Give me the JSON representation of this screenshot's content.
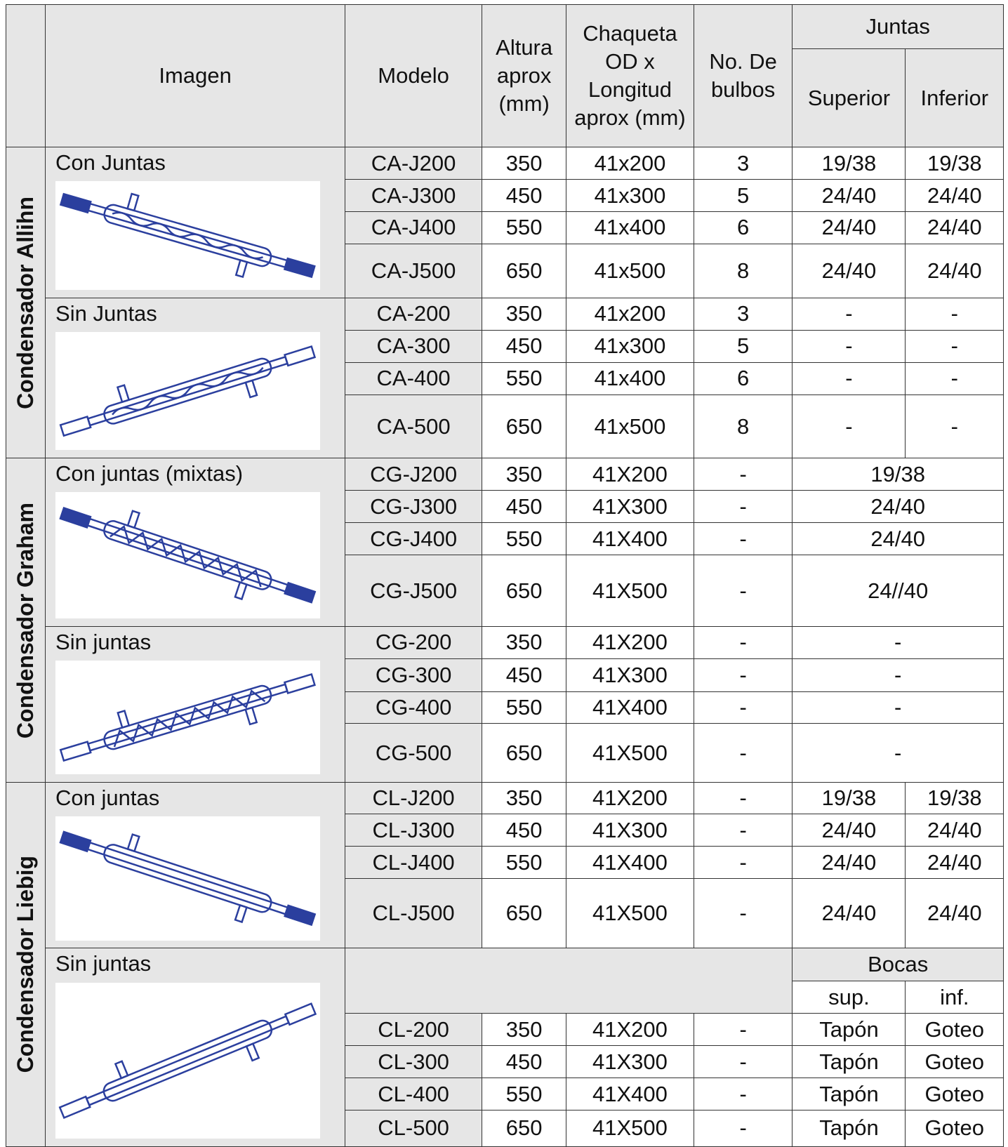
{
  "header": {
    "image": "Imagen",
    "model": "Modelo",
    "height": "Altura aprox (mm)",
    "jacket": "Chaqueta OD x Longitud aprox (mm)",
    "bulbs": "No. De bulbos",
    "joints": "Juntas",
    "upper": "Superior",
    "lower": "Inferior"
  },
  "groups": [
    {
      "name": "Condensador Allihn",
      "subgroups": [
        {
          "label": "Con Juntas",
          "rows": [
            [
              "CA-J200",
              "350",
              "41x200",
              "3",
              "19/38",
              "19/38"
            ],
            [
              "CA-J300",
              "450",
              "41x300",
              "5",
              "24/40",
              "24/40"
            ],
            [
              "CA-J400",
              "550",
              "41x400",
              "6",
              "24/40",
              "24/40"
            ],
            [
              "CA-J500",
              "650",
              "41x500",
              "8",
              "24/40",
              "24/40"
            ]
          ]
        },
        {
          "label": "Sin Juntas",
          "rows": [
            [
              "CA-200",
              "350",
              "41x200",
              "3",
              "-",
              "-"
            ],
            [
              "CA-300",
              "450",
              "41x300",
              "5",
              "-",
              "-"
            ],
            [
              "CA-400",
              "550",
              "41x400",
              "6",
              "-",
              "-"
            ],
            [
              "CA-500",
              "650",
              "41x500",
              "8",
              "-",
              "-"
            ]
          ]
        }
      ]
    },
    {
      "name": "Condensador Graham",
      "subgroups": [
        {
          "label": "Con juntas (mixtas)",
          "rows": [
            [
              "CG-J200",
              "350",
              "41X200",
              "-",
              "19/38"
            ],
            [
              "CG-J300",
              "450",
              "41X300",
              "-",
              "24/40"
            ],
            [
              "CG-J400",
              "550",
              "41X400",
              "-",
              "24/40"
            ],
            [
              "CG-J500",
              "650",
              "41X500",
              "-",
              "24//40"
            ]
          ]
        },
        {
          "label": "Sin juntas",
          "rows": [
            [
              "CG-200",
              "350",
              "41X200",
              "-",
              "-"
            ],
            [
              "CG-300",
              "450",
              "41X300",
              "-",
              "-"
            ],
            [
              "CG-400",
              "550",
              "41X400",
              "-",
              "-"
            ],
            [
              "CG-500",
              "650",
              "41X500",
              "-",
              "-"
            ]
          ]
        }
      ]
    },
    {
      "name": "Condensador Liebig",
      "subgroups": [
        {
          "label": "Con juntas",
          "rows": [
            [
              "CL-J200",
              "350",
              "41X200",
              "-",
              "19/38",
              "19/38"
            ],
            [
              "CL-J300",
              "450",
              "41X300",
              "-",
              "24/40",
              "24/40"
            ],
            [
              "CL-J400",
              "550",
              "41X400",
              "-",
              "24/40",
              "24/40"
            ],
            [
              "CL-J500",
              "650",
              "41X500",
              "-",
              "24/40",
              "24/40"
            ]
          ]
        },
        {
          "label": "Sin juntas",
          "ports": {
            "title": "Bocas",
            "upper": "sup.",
            "lower": "inf."
          },
          "rows": [
            [
              "CL-200",
              "350",
              "41X200",
              "-",
              "Tapón",
              "Goteo"
            ],
            [
              "CL-300",
              "450",
              "41X300",
              "-",
              "Tapón",
              "Goteo"
            ],
            [
              "CL-400",
              "550",
              "41X400",
              "-",
              "Tapón",
              "Goteo"
            ],
            [
              "CL-500",
              "650",
              "41X500",
              "-",
              "Tapón",
              "Goteo"
            ]
          ]
        }
      ]
    }
  ]
}
